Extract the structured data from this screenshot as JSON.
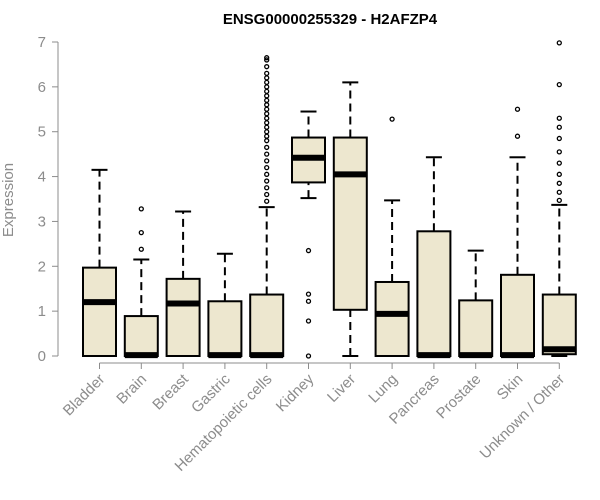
{
  "chart_data": {
    "type": "box",
    "title": "ENSG00000255329 - H2AFZP4",
    "xlabel": "",
    "ylabel": "Expression",
    "ylim": [
      0,
      7
    ],
    "yticks": [
      0,
      1,
      2,
      3,
      4,
      5,
      6,
      7
    ],
    "box_fill": "#ede7cf",
    "categories": [
      "Bladder",
      "Brain",
      "Breast",
      "Gastric",
      "Hematopoietic cells",
      "Kidney",
      "Liver",
      "Lung",
      "Pancreas",
      "Prostate",
      "Skin",
      "Unknown / Other"
    ],
    "boxes": [
      {
        "name": "Bladder",
        "whisker_low": 0,
        "q1": 0,
        "median": 1.2,
        "q3": 1.97,
        "whisker_high": 4.15,
        "outliers": []
      },
      {
        "name": "Brain",
        "whisker_low": 0,
        "q1": 0,
        "median": 0.02,
        "q3": 0.89,
        "whisker_high": 2.15,
        "outliers": [
          2.38,
          2.75,
          3.28
        ]
      },
      {
        "name": "Breast",
        "whisker_low": 0,
        "q1": 0,
        "median": 1.17,
        "q3": 1.72,
        "whisker_high": 3.22,
        "outliers": []
      },
      {
        "name": "Gastric",
        "whisker_low": 0,
        "q1": 0,
        "median": 0.02,
        "q3": 1.22,
        "whisker_high": 2.28,
        "outliers": []
      },
      {
        "name": "Hematopoietic cells",
        "whisker_low": 0,
        "q1": 0,
        "median": 0.02,
        "q3": 1.37,
        "whisker_high": 3.32,
        "outliers": [
          3.45,
          3.6,
          3.75,
          3.9,
          4.05,
          4.2,
          4.35,
          4.5,
          4.65,
          4.8,
          4.9,
          5.0,
          5.1,
          5.2,
          5.3,
          5.4,
          5.5,
          5.6,
          5.7,
          5.8,
          5.9,
          6.0,
          6.1,
          6.2,
          6.3,
          6.45,
          6.6,
          6.65
        ]
      },
      {
        "name": "Kidney",
        "whisker_low": 3.52,
        "q1": 3.87,
        "median": 4.42,
        "q3": 4.87,
        "whisker_high": 5.45,
        "outliers": [
          0.0,
          0.78,
          1.22,
          1.38,
          2.35
        ]
      },
      {
        "name": "Liver",
        "whisker_low": 0,
        "q1": 1.03,
        "median": 4.05,
        "q3": 4.87,
        "whisker_high": 6.1,
        "outliers": []
      },
      {
        "name": "Lung",
        "whisker_low": 0,
        "q1": 0,
        "median": 0.94,
        "q3": 1.65,
        "whisker_high": 3.47,
        "outliers": [
          5.28
        ]
      },
      {
        "name": "Pancreas",
        "whisker_low": 0,
        "q1": 0,
        "median": 0.02,
        "q3": 2.78,
        "whisker_high": 4.43,
        "outliers": []
      },
      {
        "name": "Prostate",
        "whisker_low": 0,
        "q1": 0,
        "median": 0.02,
        "q3": 1.24,
        "whisker_high": 2.35,
        "outliers": []
      },
      {
        "name": "Skin",
        "whisker_low": 0,
        "q1": 0,
        "median": 0.02,
        "q3": 1.81,
        "whisker_high": 4.43,
        "outliers": [
          4.9,
          5.5
        ]
      },
      {
        "name": "Unknown / Other",
        "whisker_low": 0,
        "q1": 0.04,
        "median": 0.15,
        "q3": 1.37,
        "whisker_high": 3.37,
        "outliers": [
          3.47,
          3.65,
          3.85,
          4.05,
          4.3,
          4.55,
          4.85,
          5.1,
          5.3,
          6.05,
          6.98
        ]
      }
    ]
  }
}
